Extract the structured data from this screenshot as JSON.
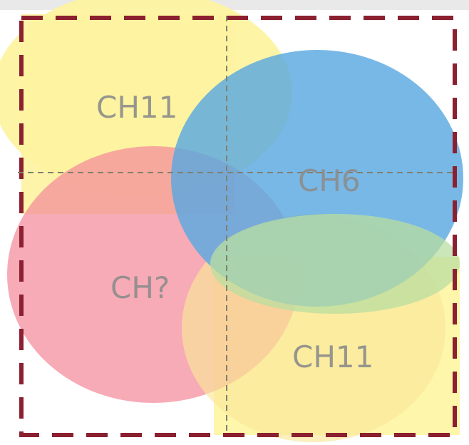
{
  "diagram": {
    "labels": {
      "top_left": "CH11",
      "center_right": "CH6",
      "bottom_left": "CH?",
      "bottom_right": "CH11"
    },
    "colors": {
      "yellow": "#fdf3a0",
      "blue": "#5aa8e0",
      "pink": "#f48a9a",
      "green": "#b9dea0",
      "border": "#8b2030",
      "guide": "#808070"
    }
  }
}
